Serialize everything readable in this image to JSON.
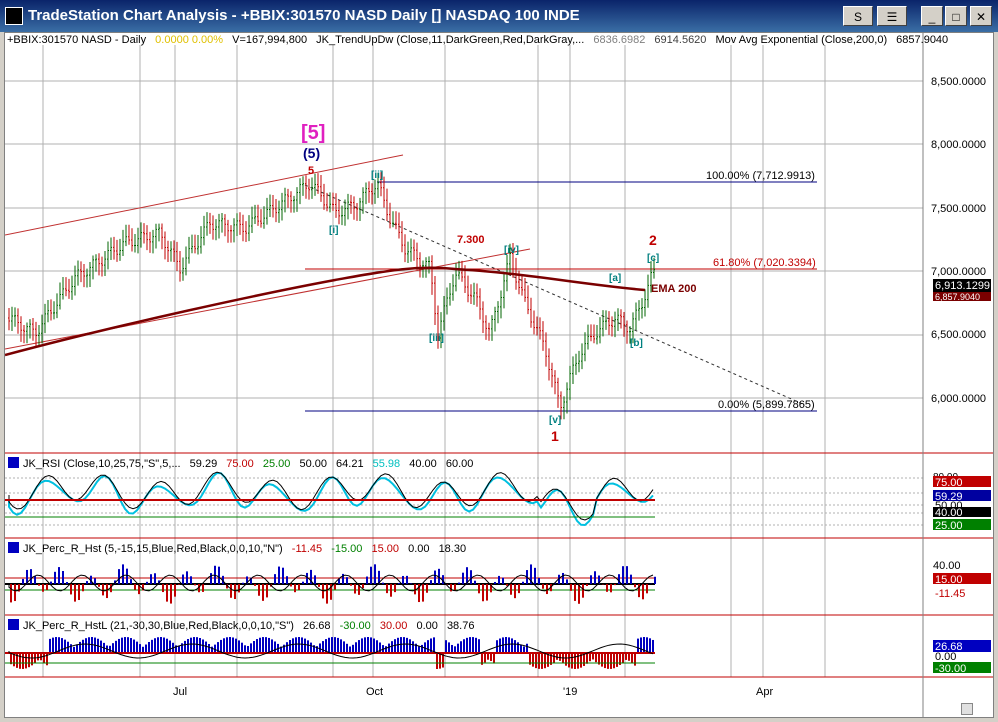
{
  "window": {
    "title": "TradeStation Chart Analysis - +BBIX:301570 NASD Daily [] NASDAQ 100 INDE",
    "btn_s": "S",
    "btn_tools": "☰",
    "btn_min": "_",
    "btn_max": "□",
    "btn_close": "✕"
  },
  "header": {
    "symbol": "+BBIX:301570 NASD - Daily",
    "change": "0.0000  0.00%",
    "volume": "V=167,994,800",
    "indicator": "JK_TrendUpDw (Close,11,DarkGreen,Red,DarkGray,...",
    "ind_v1": "6836.6982",
    "ind_v2": "6914.5620",
    "mavg": "Mov Avg Exponential (Close,200,0)",
    "mavg_v": "6857.9040"
  },
  "price_axis": [
    "8,500.0000",
    "8,000.0000",
    "7,500.0000",
    "7,000.0000",
    "6,500.0000",
    "6,000.0000"
  ],
  "last_price": "6,913.1299",
  "ema_price": "6,857.9040",
  "annotations": {
    "wave5_big": "[5]",
    "wave5_mid": "(5)",
    "wave5_small": "5",
    "i": "[i]",
    "ii": "[ii]",
    "iii": "[iii]",
    "iv": "[iv]",
    "v": "[v]",
    "a": "[a]",
    "b": "[b]",
    "c": "[c]",
    "one": "1",
    "two": "2",
    "level": "7.300",
    "fib100": "100.00% (7,712.9913)",
    "fib618": "61.80% (7,020.3394)",
    "fib0": "0.00% (5,899.7865)",
    "ema": "EMA 200"
  },
  "rsi": {
    "name": "JK_RSI (Close,10,25,75,\"S\",5,...",
    "v1": "59.29",
    "v2": "75.00",
    "v3": "25.00",
    "v4": "50.00",
    "v5": "64.21",
    "v6": "55.98",
    "v7": "40.00",
    "v8": "60.00",
    "axis": [
      "75.00",
      "59.29",
      "50.00",
      "40.00",
      "25.00"
    ],
    "axis_top": "80.00"
  },
  "percr": {
    "name": "JK_Perc_R_Hst (5,-15,15,Blue,Red,Black,0,0,10,\"N\")",
    "v1": "-11.45",
    "v2": "-15.00",
    "v3": "15.00",
    "v4": "0.00",
    "v5": "18.30",
    "axis": [
      "40.00",
      "15.00",
      "-11.45"
    ]
  },
  "percrl": {
    "name": "JK_Perc_R_HstL (21,-30,30,Blue,Red,Black,0,0,10,\"S\")",
    "v1": "26.68",
    "v2": "-30.00",
    "v3": "30.00",
    "v4": "0.00",
    "v5": "38.76",
    "axis": [
      "26.68",
      "0.00",
      "-30.00"
    ]
  },
  "time_axis": [
    "Jul",
    "Oct",
    "'19",
    "Apr"
  ],
  "colors": {
    "up": "#006400",
    "down": "#c00000",
    "ema": "#7a0000",
    "magenta": "#e020c0",
    "navy": "#000080",
    "teal": "#008080"
  }
}
